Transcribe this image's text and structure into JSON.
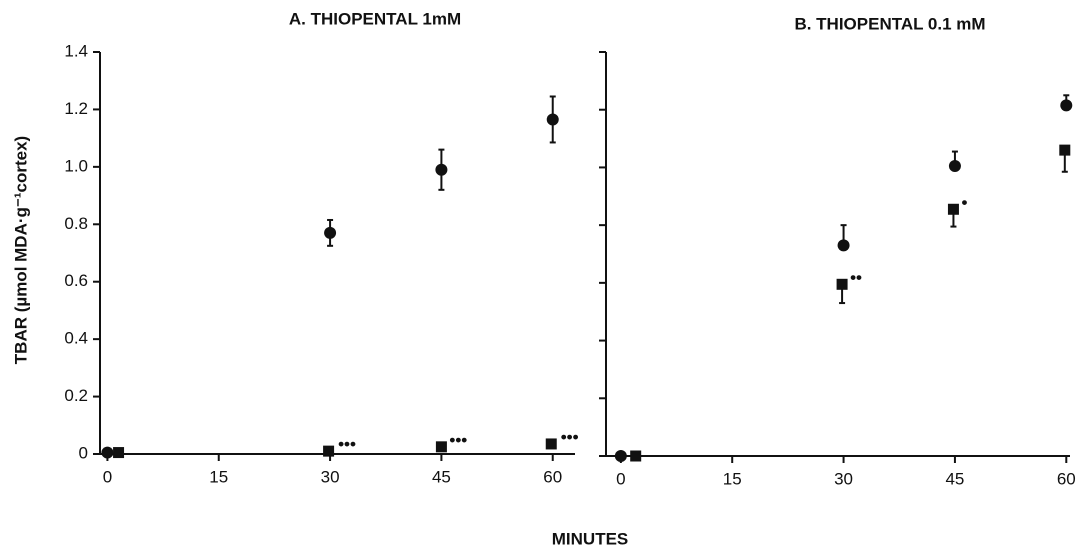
{
  "xlabel": "MINUTES",
  "chart_data": [
    {
      "type": "scatter",
      "title": "A. THIOPENTAL 1mM",
      "ylabel": "TBAR (µmol MDA·g⁻¹cortex)",
      "xlim": [
        -1,
        63
      ],
      "xticks": [
        0,
        15,
        30,
        45,
        60
      ],
      "ylim": [
        0,
        1.4
      ],
      "yticks": [
        0,
        0.2,
        0.4,
        0.6,
        0.8,
        {
          "value": 1,
          "label": "1.0"
        },
        1.2,
        1.4
      ],
      "ytick_labels": true,
      "series": [
        {
          "marker": "circle",
          "color": "#111",
          "x": [
            0,
            30,
            45,
            60
          ],
          "values": [
            0.005,
            0.77,
            0.99,
            1.165
          ],
          "errors": [
            0,
            0.045,
            0.07,
            0.08
          ],
          "error_direction": "both"
        },
        {
          "marker": "square",
          "color": "#111",
          "x": [
            1.5,
            29.8,
            45,
            59.8
          ],
          "values": [
            0.005,
            0.01,
            0.025,
            0.035
          ],
          "errors": [
            0,
            0,
            0,
            0
          ],
          "error_direction": "both"
        }
      ],
      "annotations": [
        {
          "text": "•••",
          "x": 30,
          "y": 0.01
        },
        {
          "text": "•••",
          "x": 45,
          "y": 0.025
        },
        {
          "text": "•••",
          "x": 60,
          "y": 0.035
        }
      ]
    },
    {
      "type": "scatter",
      "title": "B. THIOPENTAL 0.1 mM",
      "xlim": [
        -2,
        60.5
      ],
      "xticks": [
        0,
        15,
        30,
        45,
        60
      ],
      "ylim": [
        0,
        1.4
      ],
      "yticks": [
        0,
        0.2,
        0.4,
        0.6,
        0.8,
        1,
        1.2,
        1.4
      ],
      "ytick_labels": false,
      "series": [
        {
          "marker": "circle",
          "color": "#111",
          "x": [
            0,
            30,
            45,
            60
          ],
          "values": [
            0,
            0.73,
            1.005,
            1.215
          ],
          "errors": [
            0,
            0.07,
            0.05,
            0.035
          ],
          "error_direction": "up"
        },
        {
          "marker": "square",
          "color": "#111",
          "x": [
            2,
            29.8,
            44.8,
            59.8
          ],
          "values": [
            0,
            0.595,
            0.855,
            1.06
          ],
          "errors": [
            0,
            0.065,
            0.06,
            0.075
          ],
          "error_direction": "down"
        }
      ],
      "annotations": [
        {
          "text": "••",
          "x": 29.8,
          "y": 0.595
        },
        {
          "text": "•",
          "x": 44.8,
          "y": 0.855
        }
      ]
    }
  ]
}
